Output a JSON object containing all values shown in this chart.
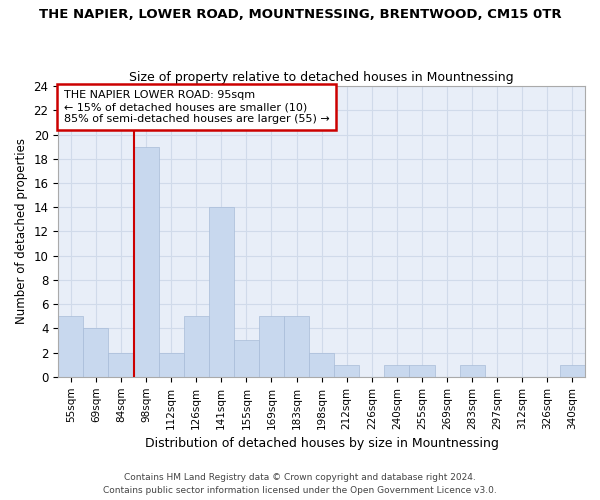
{
  "title": "THE NAPIER, LOWER ROAD, MOUNTNESSING, BRENTWOOD, CM15 0TR",
  "subtitle": "Size of property relative to detached houses in Mountnessing",
  "xlabel": "Distribution of detached houses by size in Mountnessing",
  "ylabel": "Number of detached properties",
  "categories": [
    "55sqm",
    "69sqm",
    "84sqm",
    "98sqm",
    "112sqm",
    "126sqm",
    "141sqm",
    "155sqm",
    "169sqm",
    "183sqm",
    "198sqm",
    "212sqm",
    "226sqm",
    "240sqm",
    "255sqm",
    "269sqm",
    "283sqm",
    "297sqm",
    "312sqm",
    "326sqm",
    "340sqm"
  ],
  "values": [
    5,
    4,
    2,
    19,
    2,
    5,
    14,
    3,
    5,
    5,
    2,
    1,
    0,
    1,
    1,
    0,
    1,
    0,
    0,
    0,
    1
  ],
  "bar_color": "#c8d8ee",
  "bar_edge_color": "#a8bcd8",
  "grid_color": "#d0daea",
  "plot_bg_color": "#e8eef8",
  "fig_bg_color": "#ffffff",
  "red_line_index": 3,
  "annotation_line1": "THE NAPIER LOWER ROAD: 95sqm",
  "annotation_line2": "← 15% of detached houses are smaller (10)",
  "annotation_line3": "85% of semi-detached houses are larger (55) →",
  "annotation_box_color": "#ffffff",
  "annotation_border_color": "#cc0000",
  "ylim": [
    0,
    24
  ],
  "yticks": [
    0,
    2,
    4,
    6,
    8,
    10,
    12,
    14,
    16,
    18,
    20,
    22,
    24
  ],
  "footnote1": "Contains HM Land Registry data © Crown copyright and database right 2024.",
  "footnote2": "Contains public sector information licensed under the Open Government Licence v3.0."
}
